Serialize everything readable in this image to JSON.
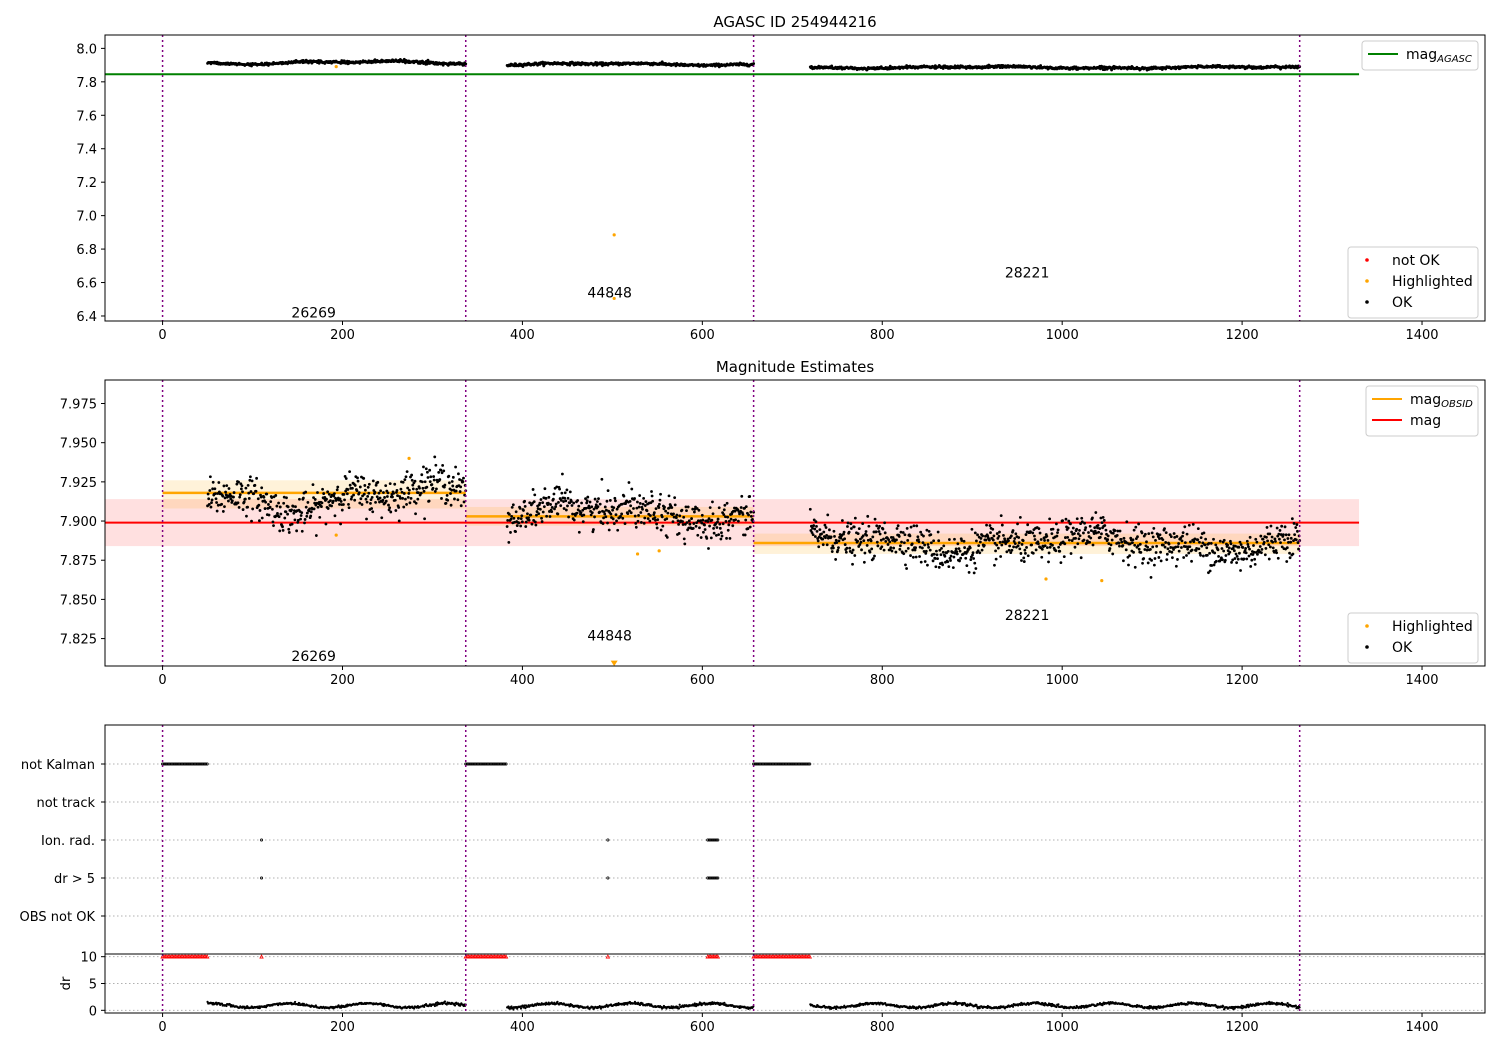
{
  "chart_data": [
    {
      "type": "scatter",
      "title": "AGASC ID 254944216",
      "xlim": [
        -64,
        1470
      ],
      "ylim": [
        6.37,
        8.08
      ],
      "xticks": [
        0,
        200,
        400,
        600,
        800,
        1000,
        1200,
        1400
      ],
      "yticks": [
        6.4,
        6.6,
        6.8,
        7.0,
        7.2,
        7.4,
        7.6,
        7.8,
        8.0
      ],
      "ytick_labels": [
        "6.4",
        "6.6",
        "6.8",
        "7.0",
        "7.2",
        "7.4",
        "7.6",
        "7.8",
        "8.0"
      ],
      "grid": false,
      "obs_boundaries": [
        0,
        337,
        657,
        1264
      ],
      "obs_labels": [
        {
          "text": "26269",
          "x": 168,
          "y": 6.42
        },
        {
          "text": "44848",
          "x": 497,
          "y": 6.54
        },
        {
          "text": "28221",
          "x": 961,
          "y": 6.66
        }
      ],
      "reference_lines": [
        {
          "name": "mag_AGASC",
          "y": 7.845,
          "x": [
            -64,
            1330
          ],
          "color": "#008000"
        }
      ],
      "segments": [
        {
          "x": [
            50,
            337
          ],
          "base": 7.915,
          "amp": 0.011,
          "noise": 0.004
        },
        {
          "x": [
            383,
            657
          ],
          "base": 7.905,
          "amp": 0.008,
          "noise": 0.004
        },
        {
          "x": [
            720,
            1264
          ],
          "base": 7.886,
          "amp": 0.007,
          "noise": 0.004
        }
      ],
      "highlighted_points": [
        {
          "x": 193,
          "y": 7.891
        },
        {
          "x": 502,
          "y": 6.885
        },
        {
          "x": 502,
          "y": 6.505
        }
      ],
      "legends": [
        {
          "placement": "top-right",
          "entries": [
            {
              "label": "mag",
              "sub": "AGASC",
              "color": "#008000",
              "kind": "line"
            }
          ]
        },
        {
          "placement": "bottom-right",
          "entries": [
            {
              "label": "not OK",
              "color": "#ff0000",
              "kind": "marker"
            },
            {
              "label": "Highlighted",
              "color": "#ffa500",
              "kind": "marker"
            },
            {
              "label": "OK",
              "color": "#000000",
              "kind": "marker"
            }
          ]
        }
      ]
    },
    {
      "type": "scatter",
      "title": "Magnitude Estimates",
      "xlim": [
        -64,
        1470
      ],
      "ylim": [
        7.8075,
        7.99
      ],
      "xticks": [
        0,
        200,
        400,
        600,
        800,
        1000,
        1200,
        1400
      ],
      "yticks": [
        7.825,
        7.85,
        7.875,
        7.9,
        7.925,
        7.95,
        7.975
      ],
      "ytick_labels": [
        "7.825",
        "7.850",
        "7.875",
        "7.900",
        "7.925",
        "7.950",
        "7.975"
      ],
      "grid": false,
      "obs_boundaries": [
        0,
        337,
        657,
        1264
      ],
      "obs_labels": [
        {
          "text": "26269",
          "x": 168,
          "y": 7.814
        },
        {
          "text": "44848",
          "x": 497,
          "y": 7.827
        },
        {
          "text": "28221",
          "x": 961,
          "y": 7.84
        }
      ],
      "mag_line": {
        "name": "mag",
        "y": 7.899,
        "band": [
          7.884,
          7.914
        ],
        "x": [
          -64,
          1330
        ],
        "color": "#ff0000"
      },
      "obsid_mags": [
        {
          "x": [
            0,
            337
          ],
          "y": 7.918,
          "band": [
            7.908,
            7.926
          ]
        },
        {
          "x": [
            337,
            657
          ],
          "y": 7.903,
          "band": [
            7.897,
            7.909
          ]
        },
        {
          "x": [
            657,
            1264
          ],
          "y": 7.886,
          "band": [
            7.879,
            7.892
          ]
        }
      ],
      "segments": [
        {
          "x": [
            50,
            337
          ],
          "base": 7.915,
          "amp": 0.011,
          "noise": 0.006
        },
        {
          "x": [
            383,
            657
          ],
          "base": 7.905,
          "amp": 0.008,
          "noise": 0.006
        },
        {
          "x": [
            720,
            1264
          ],
          "base": 7.886,
          "amp": 0.007,
          "noise": 0.006
        }
      ],
      "highlighted_points": [
        {
          "x": 193,
          "y": 7.891
        },
        {
          "x": 274,
          "y": 7.94
        },
        {
          "x": 528,
          "y": 7.879
        },
        {
          "x": 552,
          "y": 7.881
        },
        {
          "x": 982,
          "y": 7.863
        },
        {
          "x": 1044,
          "y": 7.862
        }
      ],
      "offscale_marker": {
        "x": 502,
        "y": 7.809
      },
      "legends": [
        {
          "placement": "top-right",
          "entries": [
            {
              "label": "mag",
              "sub": "OBSID",
              "color": "#ffa500",
              "kind": "line"
            },
            {
              "label": "mag",
              "sub": "",
              "color": "#ff0000",
              "kind": "line"
            }
          ]
        },
        {
          "placement": "bottom-right",
          "entries": [
            {
              "label": "Highlighted",
              "color": "#ffa500",
              "kind": "marker"
            },
            {
              "label": "OK",
              "color": "#000000",
              "kind": "marker"
            }
          ]
        }
      ]
    },
    {
      "type": "scatter",
      "title": "",
      "xlim": [
        -64,
        1470
      ],
      "flag_rows": [
        "not Kalman",
        "not track",
        "Ion. rad.",
        "dr > 5",
        "OBS not OK"
      ],
      "flag_ranges": {
        "not Kalman": [
          [
            0,
            50
          ],
          [
            337,
            383
          ],
          [
            657,
            720
          ]
        ],
        "not track": [],
        "Ion. rad.": [
          [
            110,
            110
          ],
          [
            495,
            495
          ],
          [
            606,
            618
          ]
        ],
        "dr > 5": [
          [
            110,
            110
          ],
          [
            495,
            495
          ],
          [
            606,
            618
          ]
        ],
        "OBS not OK": []
      },
      "obs_boundaries": [
        0,
        337,
        657,
        1264
      ]
    },
    {
      "type": "scatter",
      "title": "",
      "ylabel": "dr",
      "xlim": [
        -64,
        1470
      ],
      "ylim": [
        -0.5,
        10.5
      ],
      "xticks": [
        0,
        200,
        400,
        600,
        800,
        1000,
        1200,
        1400
      ],
      "yticks": [
        0,
        5,
        10
      ],
      "ytick_labels": [
        "0",
        "5",
        "10"
      ],
      "grid": "dotted",
      "obs_boundaries": [
        0,
        337,
        657,
        1264
      ],
      "red_at_10_ranges": [
        [
          0,
          50
        ],
        [
          110,
          110
        ],
        [
          337,
          383
        ],
        [
          495,
          495
        ],
        [
          606,
          618
        ],
        [
          657,
          720
        ]
      ],
      "dr_segments": [
        [
          50,
          337
        ],
        [
          383,
          657
        ],
        [
          720,
          1264
        ]
      ],
      "dr_level": [
        0.4,
        1.5
      ]
    }
  ]
}
